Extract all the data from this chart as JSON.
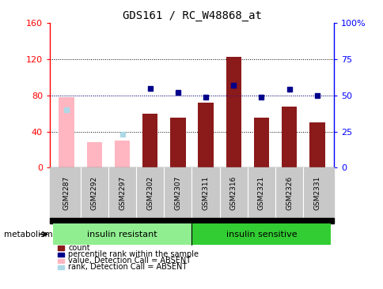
{
  "title": "GDS161 / RC_W48868_at",
  "samples": [
    "GSM2287",
    "GSM2292",
    "GSM2297",
    "GSM2302",
    "GSM2307",
    "GSM2311",
    "GSM2316",
    "GSM2321",
    "GSM2326",
    "GSM2331"
  ],
  "count_values": [
    0,
    0,
    0,
    60,
    55,
    72,
    123,
    55,
    68,
    50
  ],
  "count_absent": [
    78,
    28,
    30,
    0,
    0,
    0,
    0,
    0,
    0,
    0
  ],
  "rank_present_dots": [
    null,
    null,
    null,
    55,
    52,
    49,
    57,
    49,
    54,
    50
  ],
  "rank_absent_dots": [
    40,
    null,
    23,
    null,
    null,
    null,
    null,
    null,
    null,
    null
  ],
  "ylim_left": [
    0,
    160
  ],
  "ylim_right": [
    0,
    100
  ],
  "yticks_left": [
    0,
    40,
    80,
    120,
    160
  ],
  "yticks_right": [
    0,
    25,
    50,
    75,
    100
  ],
  "ytick_labels_right": [
    "0",
    "25",
    "50",
    "75",
    "100%"
  ],
  "group1_label": "insulin resistant",
  "group2_label": "insulin sensitive",
  "metabolism_label": "metabolism",
  "bar_color": "#8B1A1A",
  "absent_bar_color": "#FFB6C1",
  "present_dot_color": "#00008B",
  "absent_dot_color": "#ADD8E6",
  "group1_color": "#90EE90",
  "group2_color": "#32CD32",
  "legend_items": [
    {
      "label": "count",
      "color": "#8B1A1A"
    },
    {
      "label": "percentile rank within the sample",
      "color": "#00008B"
    },
    {
      "label": "value, Detection Call = ABSENT",
      "color": "#FFB6C1"
    },
    {
      "label": "rank, Detection Call = ABSENT",
      "color": "#ADD8E6"
    }
  ]
}
